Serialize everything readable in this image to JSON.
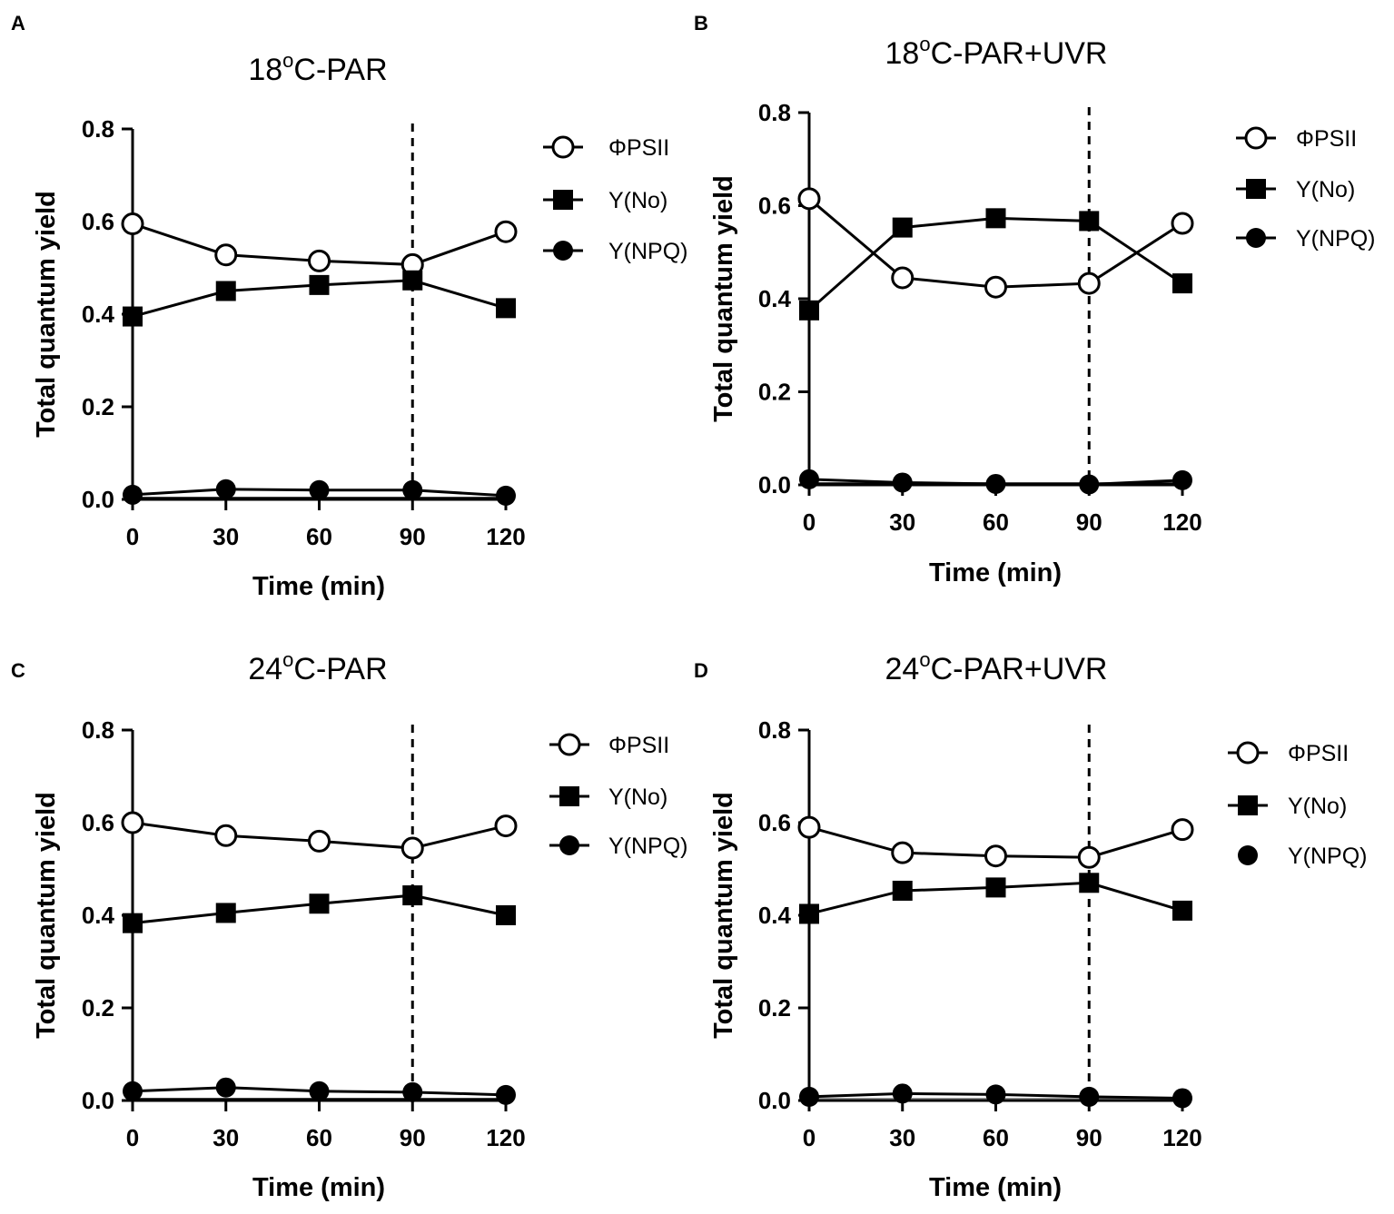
{
  "figure": {
    "series_styles": {
      "phi_psii": {
        "marker": "circle-open",
        "color": "#000000"
      },
      "y_no": {
        "marker": "square-filled",
        "color": "#000000"
      },
      "y_npq": {
        "marker": "circle-filled",
        "color": "#000000"
      }
    }
  },
  "chart_data": [
    {
      "panel": "A",
      "type": "line",
      "title": {
        "prefix": "18",
        "sup": "o",
        "suffix": "C-PAR"
      },
      "xlabel": "Time (min)",
      "ylabel": "Total quantum yield",
      "x": [
        0,
        30,
        60,
        90,
        120
      ],
      "xticks": [
        "0",
        "30",
        "60",
        "90",
        "120"
      ],
      "yticks": [
        "0.0",
        "0.2",
        "0.4",
        "0.6",
        "0.8"
      ],
      "ylim": [
        0,
        0.8
      ],
      "xlim": [
        0,
        120
      ],
      "reference_line_x": 90,
      "series": [
        {
          "key": "phi_psii",
          "name": "ΦPSII",
          "values": [
            0.595,
            0.528,
            0.515,
            0.507,
            0.578
          ]
        },
        {
          "key": "y_no",
          "name": "Y(No)",
          "values": [
            0.395,
            0.45,
            0.463,
            0.473,
            0.413
          ]
        },
        {
          "key": "y_npq",
          "name": "Y(NPQ)",
          "values": [
            0.01,
            0.022,
            0.02,
            0.02,
            0.008
          ]
        }
      ]
    },
    {
      "panel": "B",
      "type": "line",
      "title": {
        "prefix": "18",
        "sup": "o",
        "suffix": "C-PAR+UVR"
      },
      "xlabel": "Time (min)",
      "ylabel": "Total quantum yield",
      "x": [
        0,
        30,
        60,
        90,
        120
      ],
      "xticks": [
        "0",
        "30",
        "60",
        "90",
        "120"
      ],
      "yticks": [
        "0.0",
        "0.2",
        "0.4",
        "0.6",
        "0.8"
      ],
      "ylim": [
        0,
        0.8
      ],
      "xlim": [
        0,
        120
      ],
      "reference_line_x": 90,
      "series": [
        {
          "key": "phi_psii",
          "name": "ΦPSII",
          "values": [
            0.615,
            0.445,
            0.425,
            0.433,
            0.562
          ]
        },
        {
          "key": "y_no",
          "name": "Y(No)",
          "values": [
            0.375,
            0.553,
            0.573,
            0.567,
            0.433
          ]
        },
        {
          "key": "y_npq",
          "name": "Y(NPQ)",
          "values": [
            0.012,
            0.005,
            0.002,
            0.001,
            0.01
          ]
        }
      ]
    },
    {
      "panel": "C",
      "type": "line",
      "title": {
        "prefix": "24",
        "sup": "o",
        "suffix": "C-PAR"
      },
      "xlabel": "Time (min)",
      "ylabel": "Total quantum yield",
      "x": [
        0,
        30,
        60,
        90,
        120
      ],
      "xticks": [
        "0",
        "30",
        "60",
        "90",
        "120"
      ],
      "yticks": [
        "0.0",
        "0.2",
        "0.4",
        "0.6",
        "0.8"
      ],
      "ylim": [
        0,
        0.8
      ],
      "xlim": [
        0,
        120
      ],
      "reference_line_x": 90,
      "series": [
        {
          "key": "phi_psii",
          "name": "ΦPSII",
          "values": [
            0.6,
            0.572,
            0.56,
            0.545,
            0.593
          ]
        },
        {
          "key": "y_no",
          "name": "Y(No)",
          "values": [
            0.383,
            0.405,
            0.425,
            0.443,
            0.4
          ]
        },
        {
          "key": "y_npq",
          "name": "Y(NPQ)",
          "values": [
            0.02,
            0.028,
            0.02,
            0.018,
            0.012
          ]
        }
      ]
    },
    {
      "panel": "D",
      "type": "line",
      "title": {
        "prefix": "24",
        "sup": "o",
        "suffix": "C-PAR+UVR"
      },
      "xlabel": "Time (min)",
      "ylabel": "Total quantum yield",
      "x": [
        0,
        30,
        60,
        90,
        120
      ],
      "xticks": [
        "0",
        "30",
        "60",
        "90",
        "120"
      ],
      "yticks": [
        "0.0",
        "0.2",
        "0.4",
        "0.6",
        "0.8"
      ],
      "ylim": [
        0,
        0.8
      ],
      "xlim": [
        0,
        120
      ],
      "reference_line_x": 90,
      "series": [
        {
          "key": "phi_psii",
          "name": "ΦPSII",
          "values": [
            0.59,
            0.535,
            0.528,
            0.525,
            0.585
          ]
        },
        {
          "key": "y_no",
          "name": "Y(No)",
          "values": [
            0.403,
            0.453,
            0.46,
            0.47,
            0.41
          ]
        },
        {
          "key": "y_npq",
          "name": "Y(NPQ)",
          "values": [
            0.008,
            0.015,
            0.013,
            0.008,
            0.005
          ]
        }
      ]
    }
  ]
}
